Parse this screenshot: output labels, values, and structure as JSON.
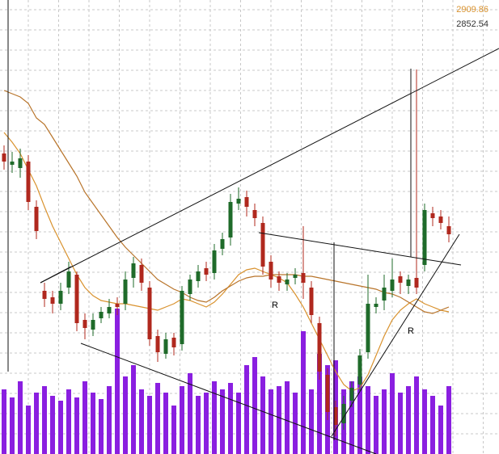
{
  "chart_data": {
    "type": "candlestick",
    "ylim": [
      2720,
      3000
    ],
    "volume_lim": [
      0,
      100
    ],
    "up_color": "#1f6b2a",
    "down_color": "#b0281e",
    "volume_color": "#8a1fe0",
    "open": [
      2905,
      2898,
      2896,
      2900,
      2872,
      2820,
      2816,
      2812,
      2822,
      2830,
      2802,
      2796,
      2803,
      2806,
      2812,
      2812,
      2828,
      2836,
      2822,
      2792,
      2781,
      2791,
      2787,
      2818,
      2826,
      2834,
      2831,
      2846,
      2853,
      2874,
      2878,
      2870,
      2862,
      2838,
      2829,
      2824,
      2828,
      2831,
      2822,
      2800,
      2768,
      2748,
      2738,
      2752,
      2762,
      2782,
      2810,
      2814,
      2820,
      2829,
      2823,
      2828,
      2836,
      2868,
      2866,
      2860
    ],
    "high": [
      2910,
      2906,
      2908,
      2904,
      2876,
      2825,
      2820,
      2825,
      2838,
      2832,
      2806,
      2806,
      2810,
      2815,
      2816,
      2832,
      2841,
      2840,
      2826,
      2796,
      2794,
      2794,
      2823,
      2830,
      2836,
      2838,
      2849,
      2856,
      2880,
      2884,
      2882,
      2874,
      2866,
      2842,
      2832,
      2831,
      2834,
      2860,
      2826,
      2804,
      2772,
      2752,
      2755,
      2764,
      2784,
      2830,
      2816,
      2830,
      2840,
      2832,
      2830,
      2957,
      2874,
      2872,
      2870,
      2866
    ],
    "low": [
      2895,
      2893,
      2890,
      2870,
      2852,
      2810,
      2806,
      2808,
      2818,
      2795,
      2790,
      2792,
      2800,
      2803,
      2805,
      2808,
      2822,
      2820,
      2786,
      2776,
      2778,
      2780,
      2783,
      2814,
      2822,
      2826,
      2827,
      2842,
      2848,
      2870,
      2866,
      2860,
      2830,
      2822,
      2820,
      2820,
      2824,
      2815,
      2800,
      2765,
      2740,
      2730,
      2734,
      2748,
      2758,
      2778,
      2806,
      2808,
      2816,
      2818,
      2818,
      2818,
      2832,
      2860,
      2858,
      2850
    ],
    "close": [
      2900,
      2900,
      2902,
      2875,
      2857,
      2815,
      2812,
      2820,
      2832,
      2800,
      2797,
      2802,
      2807,
      2810,
      2810,
      2827,
      2837,
      2825,
      2790,
      2782,
      2790,
      2785,
      2820,
      2827,
      2832,
      2830,
      2845,
      2852,
      2875,
      2877,
      2872,
      2865,
      2835,
      2827,
      2825,
      2827,
      2830,
      2825,
      2805,
      2770,
      2745,
      2737,
      2750,
      2760,
      2780,
      2812,
      2812,
      2822,
      2827,
      2825,
      2827,
      2822,
      2870,
      2865,
      2862,
      2855
    ],
    "volume": [
      40,
      35,
      45,
      30,
      38,
      42,
      36,
      33,
      40,
      35,
      45,
      38,
      34,
      42,
      90,
      48,
      55,
      40,
      36,
      44,
      38,
      30,
      42,
      50,
      36,
      38,
      45,
      40,
      44,
      38,
      55,
      60,
      48,
      40,
      42,
      45,
      38,
      76,
      40,
      62,
      55,
      58,
      40,
      45,
      48,
      42,
      36,
      40,
      50,
      38,
      42,
      48,
      40,
      36,
      30,
      42
    ],
    "series": [
      {
        "name": "2909.86",
        "color": "#d9922e",
        "values": [
          2918,
          2912,
          2905,
          2895,
          2885,
          2872,
          2860,
          2850,
          2840,
          2830,
          2822,
          2817,
          2814,
          2813,
          2812,
          2812,
          2811,
          2810,
          2809,
          2808,
          2810,
          2812,
          2815,
          2814,
          2812,
          2810,
          2813,
          2818,
          2824,
          2830,
          2833,
          2834,
          2832,
          2830,
          2828,
          2825,
          2818,
          2810,
          2800,
          2790,
          2780,
          2770,
          2762,
          2758,
          2760,
          2768,
          2780,
          2792,
          2802,
          2808,
          2812,
          2815,
          2812,
          2810,
          2808,
          2807
        ]
      },
      {
        "name": "2852.54",
        "color": "#b8742a",
        "values": [
          2944,
          2942,
          2940,
          2936,
          2927,
          2923,
          2915,
          2907,
          2899,
          2891,
          2881,
          2874,
          2867,
          2860,
          2853,
          2847,
          2842,
          2837,
          2832,
          2827,
          2824,
          2821,
          2819,
          2816,
          2814,
          2813,
          2816,
          2820,
          2823,
          2826,
          2828,
          2829,
          2829,
          2830,
          2830,
          2830,
          2830,
          2829,
          2829,
          2828,
          2827,
          2826,
          2825,
          2824,
          2823,
          2822,
          2821,
          2819,
          2818,
          2816,
          2813,
          2810,
          2807,
          2806,
          2808,
          2810
        ]
      }
    ],
    "annotations": [
      "R",
      "R"
    ]
  }
}
